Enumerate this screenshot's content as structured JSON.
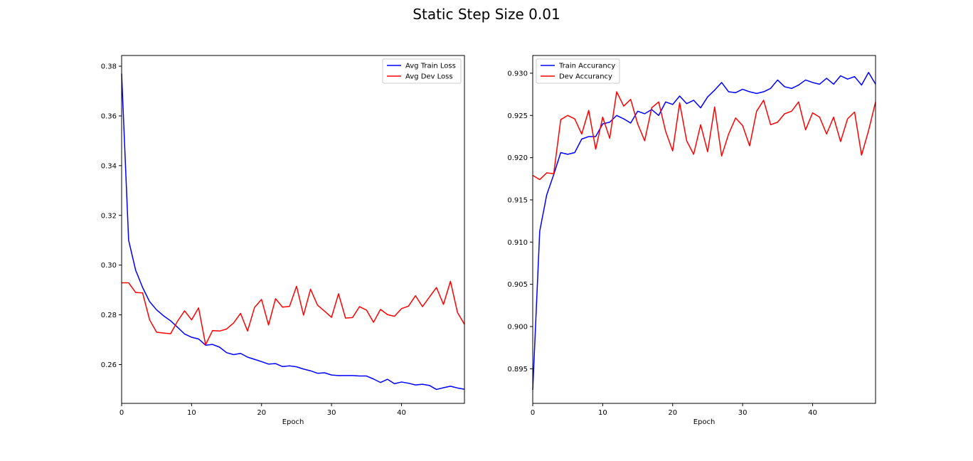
{
  "figure": {
    "title": "Static Step Size 0.01"
  },
  "colors": {
    "train": "#0000ff",
    "dev": "#ff0000"
  },
  "chart_data": [
    {
      "type": "line",
      "title": "",
      "xlabel": "Epoch",
      "ylabel": "",
      "xlim": [
        0,
        49
      ],
      "ylim": [
        0.2444,
        0.3843
      ],
      "xticks": [
        0,
        10,
        20,
        30,
        40
      ],
      "yticks": [
        0.26,
        0.28,
        0.3,
        0.32,
        0.34,
        0.36,
        0.38
      ],
      "ytick_decimals": 2,
      "legend": "upper right",
      "grid": false,
      "series": [
        {
          "name": "Avg Train Loss",
          "color": "#0000ff",
          "values": [
            0.377,
            0.31,
            0.298,
            0.291,
            0.2853,
            0.282,
            0.2796,
            0.2776,
            0.275,
            0.2723,
            0.271,
            0.2703,
            0.2678,
            0.2681,
            0.267,
            0.2648,
            0.264,
            0.2645,
            0.263,
            0.2621,
            0.2612,
            0.2602,
            0.2604,
            0.2592,
            0.2595,
            0.2591,
            0.2582,
            0.2575,
            0.2565,
            0.2567,
            0.2558,
            0.2556,
            0.2556,
            0.2556,
            0.2554,
            0.2554,
            0.2542,
            0.2528,
            0.2541,
            0.2523,
            0.253,
            0.2525,
            0.2518,
            0.2521,
            0.2516,
            0.25,
            0.2507,
            0.2513,
            0.2506,
            0.2501
          ]
        },
        {
          "name": "Avg Dev Loss",
          "color": "#ff0000",
          "values": [
            0.2929,
            0.2929,
            0.289,
            0.2888,
            0.278,
            0.273,
            0.2727,
            0.2724,
            0.2775,
            0.2816,
            0.278,
            0.2828,
            0.268,
            0.2737,
            0.2735,
            0.2743,
            0.2767,
            0.2806,
            0.2735,
            0.283,
            0.2862,
            0.2759,
            0.2865,
            0.2831,
            0.2834,
            0.2915,
            0.2799,
            0.2903,
            0.2839,
            0.2815,
            0.279,
            0.2885,
            0.2787,
            0.2789,
            0.2833,
            0.2819,
            0.277,
            0.2822,
            0.2801,
            0.2794,
            0.2825,
            0.2835,
            0.2877,
            0.2833,
            0.2872,
            0.291,
            0.2842,
            0.2935,
            0.281,
            0.2762
          ]
        }
      ]
    },
    {
      "type": "line",
      "title": "",
      "xlabel": "Epoch",
      "ylabel": "",
      "xlim": [
        0,
        49
      ],
      "ylim": [
        0.8909,
        0.9321
      ],
      "xticks": [
        0,
        10,
        20,
        30,
        40
      ],
      "yticks": [
        0.895,
        0.9,
        0.905,
        0.91,
        0.915,
        0.92,
        0.925,
        0.93
      ],
      "ytick_decimals": 3,
      "legend": "upper left",
      "grid": false,
      "series": [
        {
          "name": "Train Accurancy",
          "color": "#0000ff",
          "values": [
            0.8925,
            0.9113,
            0.9156,
            0.918,
            0.9206,
            0.9204,
            0.9206,
            0.9222,
            0.9225,
            0.9225,
            0.924,
            0.9242,
            0.925,
            0.9246,
            0.9241,
            0.9255,
            0.9252,
            0.9257,
            0.925,
            0.9266,
            0.9263,
            0.9273,
            0.9264,
            0.9268,
            0.9259,
            0.9272,
            0.928,
            0.9289,
            0.9278,
            0.9277,
            0.9281,
            0.9278,
            0.9276,
            0.9278,
            0.9282,
            0.9292,
            0.9284,
            0.9282,
            0.9286,
            0.9292,
            0.9289,
            0.9287,
            0.9294,
            0.9287,
            0.9297,
            0.9293,
            0.9296,
            0.9286,
            0.9301,
            0.9287
          ]
        },
        {
          "name": "Dev Accurancy",
          "color": "#ff0000",
          "values": [
            0.9179,
            0.9174,
            0.9182,
            0.9181,
            0.9245,
            0.925,
            0.9246,
            0.9228,
            0.9256,
            0.921,
            0.9248,
            0.9223,
            0.9278,
            0.9261,
            0.9269,
            0.924,
            0.922,
            0.9259,
            0.9266,
            0.9231,
            0.9208,
            0.9265,
            0.922,
            0.9204,
            0.9239,
            0.9207,
            0.926,
            0.9202,
            0.9228,
            0.9247,
            0.9238,
            0.9214,
            0.9255,
            0.9268,
            0.9239,
            0.9242,
            0.9252,
            0.9255,
            0.9266,
            0.9233,
            0.9253,
            0.9248,
            0.9228,
            0.9248,
            0.9219,
            0.9246,
            0.9254,
            0.9203,
            0.9232,
            0.9266
          ]
        }
      ]
    }
  ]
}
